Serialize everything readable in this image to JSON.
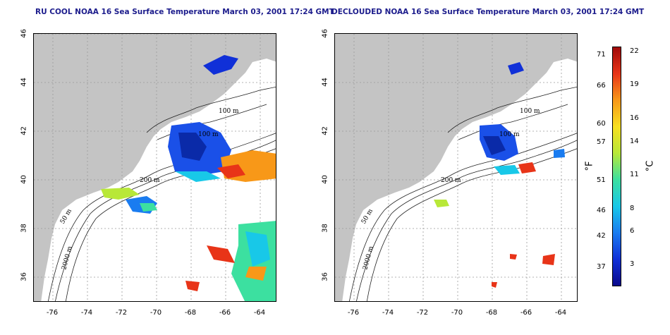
{
  "titles": {
    "left": "RU COOL NOAA 16 Sea Surface Temperature March 03, 2001 17:24 GMT",
    "right": "DECLOUDED NOAA 16 Sea Surface Temperature March 03, 2001 17:24 GMT"
  },
  "axes": {
    "lat_ticks": [
      "46",
      "44",
      "42",
      "40",
      "38",
      "36"
    ],
    "lon_ticks": [
      "-76",
      "-74",
      "-72",
      "-70",
      "-68",
      "-66",
      "-64"
    ]
  },
  "contour_labels": {
    "left": [
      "100 m",
      "100 m",
      "200 m",
      "50 m",
      "2000 m"
    ],
    "right": [
      "100 m",
      "100 m",
      "200 m",
      "50 m",
      "2000 m"
    ]
  },
  "colorbar": {
    "fahrenheit_ticks": [
      "71",
      "66",
      "60",
      "57",
      "51",
      "46",
      "42",
      "37"
    ],
    "celsius_ticks": [
      "22",
      "19",
      "16",
      "14",
      "11",
      "8",
      "6",
      "3"
    ],
    "unit_f": "°F",
    "unit_c": "°C",
    "colors": [
      "#0a0a8c",
      "#1030d8",
      "#1a7cf0",
      "#18c8e8",
      "#3ce0a0",
      "#b8e838",
      "#f8e020",
      "#f89818",
      "#e83418",
      "#a00a0a"
    ]
  },
  "colors": {
    "land": "#c4c4c4",
    "title": "#1c1c8c",
    "grid": "#9a9a9a"
  }
}
